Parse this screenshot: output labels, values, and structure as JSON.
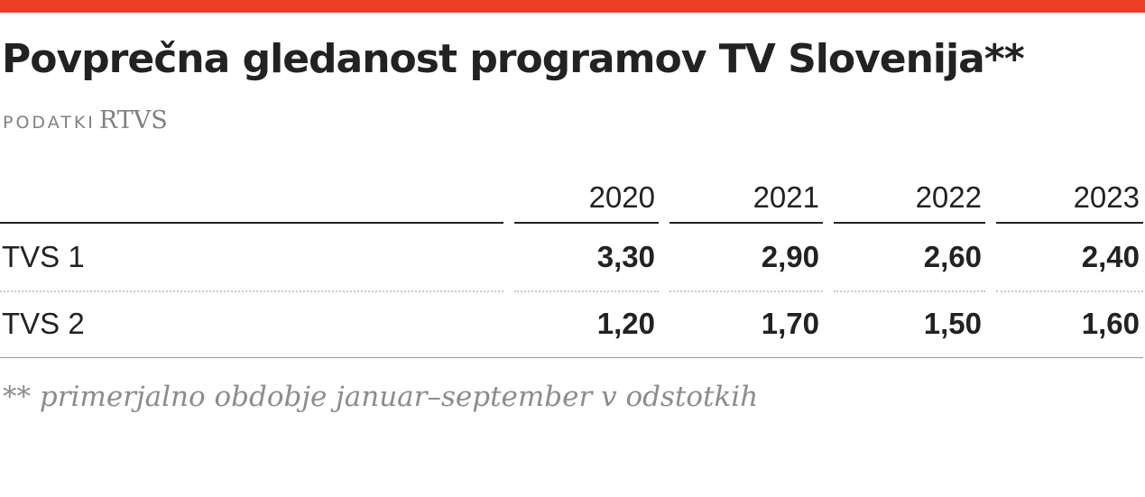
{
  "title": "Povprečna gledanost programov TV Slovenija**",
  "source_label": "PODATKI",
  "source_value": "RTVS",
  "note": "** primerjalno obdobje januar–september v odstotkih",
  "colors": {
    "accent_bar": "#ee3d23",
    "text": "#222222",
    "muted": "#808080"
  },
  "chart_data": {
    "type": "table",
    "columns": [
      "2020",
      "2021",
      "2022",
      "2023"
    ],
    "rows": [
      {
        "label": "TVS 1",
        "values": [
          "3,30",
          "2,90",
          "2,60",
          "2,40"
        ]
      },
      {
        "label": "TVS 2",
        "values": [
          "1,20",
          "1,70",
          "1,50",
          "1,60"
        ]
      }
    ]
  }
}
